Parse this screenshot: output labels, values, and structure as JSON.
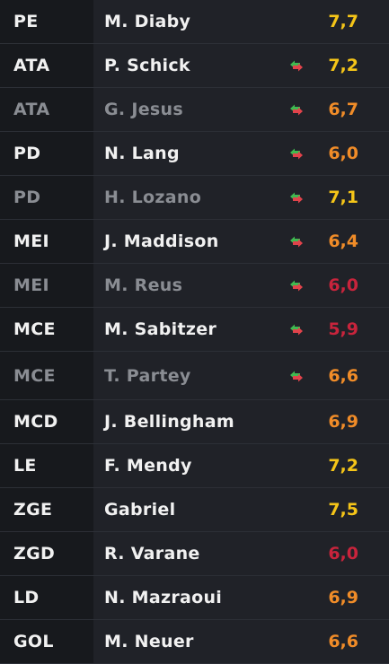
{
  "colors": {
    "high": "#f5c518",
    "mid": "#f08c28",
    "low": "#c8243c",
    "arrow_up": "#3fb950",
    "arrow_down": "#e0434b"
  },
  "players": [
    {
      "position": "PE",
      "name": "M. Diaby",
      "rating": "7,7",
      "tier": "high",
      "swap": false,
      "dim": false
    },
    {
      "position": "ATA",
      "name": "P. Schick",
      "rating": "7,2",
      "tier": "high",
      "swap": true,
      "dim": false
    },
    {
      "position": "ATA",
      "name": "G. Jesus",
      "rating": "6,7",
      "tier": "mid",
      "swap": true,
      "dim": true
    },
    {
      "position": "PD",
      "name": "N. Lang",
      "rating": "6,0",
      "tier": "mid",
      "swap": true,
      "dim": false
    },
    {
      "position": "PD",
      "name": "H. Lozano",
      "rating": "7,1",
      "tier": "high",
      "swap": true,
      "dim": true
    },
    {
      "position": "MEI",
      "name": "J. Maddison",
      "rating": "6,4",
      "tier": "mid",
      "swap": true,
      "dim": false
    },
    {
      "position": "MEI",
      "name": "M. Reus",
      "rating": "6,0",
      "tier": "low",
      "swap": true,
      "dim": true
    },
    {
      "position": "MCE",
      "name": "M. Sabitzer",
      "rating": "5,9",
      "tier": "low",
      "swap": true,
      "dim": false
    },
    {
      "position": "MCE",
      "name": "T. Partey",
      "rating": "6,6",
      "tier": "mid",
      "swap": true,
      "dim": true
    },
    {
      "position": "MCD",
      "name": "J. Bellingham",
      "rating": "6,9",
      "tier": "mid",
      "swap": false,
      "dim": false
    },
    {
      "position": "LE",
      "name": "F. Mendy",
      "rating": "7,2",
      "tier": "high",
      "swap": false,
      "dim": false
    },
    {
      "position": "ZGE",
      "name": "Gabriel",
      "rating": "7,5",
      "tier": "high",
      "swap": false,
      "dim": false
    },
    {
      "position": "ZGD",
      "name": "R. Varane",
      "rating": "6,0",
      "tier": "low",
      "swap": false,
      "dim": false
    },
    {
      "position": "LD",
      "name": "N. Mazraoui",
      "rating": "6,9",
      "tier": "mid",
      "swap": false,
      "dim": false
    },
    {
      "position": "GOL",
      "name": "M. Neuer",
      "rating": "6,6",
      "tier": "mid",
      "swap": false,
      "dim": false
    }
  ]
}
